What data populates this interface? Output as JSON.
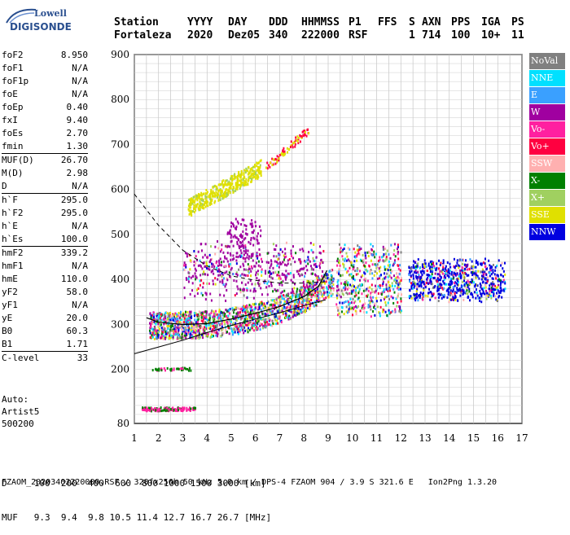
{
  "logo": {
    "line1": "Lowell",
    "line2": "DIGISONDE"
  },
  "header": {
    "labels": [
      "Station",
      "YYYY",
      "DAY",
      "DDD",
      "HHMMSS",
      "P1",
      "FFS",
      "S",
      "AXN",
      "PPS",
      "IGA",
      "PS"
    ],
    "values": [
      "Fortaleza",
      "2020",
      "Dez05",
      "340",
      "222000",
      "RSF",
      "",
      "1",
      "714",
      "100",
      "10+",
      "11"
    ]
  },
  "params": [
    {
      "k": "foF2",
      "v": "8.950"
    },
    {
      "k": "foF1",
      "v": "N/A"
    },
    {
      "k": "foF1p",
      "v": "N/A"
    },
    {
      "k": "foE",
      "v": "N/A"
    },
    {
      "k": "foEp",
      "v": "0.40"
    },
    {
      "k": "fxI",
      "v": "9.40"
    },
    {
      "k": "foEs",
      "v": "2.70"
    },
    {
      "k": "fmin",
      "v": "1.30"
    },
    {
      "k": "MUF(D)",
      "v": "26.70"
    },
    {
      "k": "M(D)",
      "v": "2.98"
    },
    {
      "k": "D",
      "v": "N/A"
    },
    {
      "k": "h`F",
      "v": "295.0"
    },
    {
      "k": "h`F2",
      "v": "295.0"
    },
    {
      "k": "h`E",
      "v": "N/A"
    },
    {
      "k": "h`Es",
      "v": "100.0"
    },
    {
      "k": "hmF2",
      "v": "339.2"
    },
    {
      "k": "hmF1",
      "v": "N/A"
    },
    {
      "k": "hmE",
      "v": "110.0"
    },
    {
      "k": "yF2",
      "v": "58.0"
    },
    {
      "k": "yF1",
      "v": "N/A"
    },
    {
      "k": "yE",
      "v": "20.0"
    },
    {
      "k": "B0",
      "v": "60.3"
    },
    {
      "k": "B1",
      "v": "1.71"
    },
    {
      "k": "C-level",
      "v": "33"
    }
  ],
  "auto": [
    "Auto:",
    "Artist5",
    "500200"
  ],
  "legend": [
    {
      "label": "NoVal",
      "color": "#808080"
    },
    {
      "label": "NNE",
      "color": "#00e0ff"
    },
    {
      "label": "E",
      "color": "#3aa0ff"
    },
    {
      "label": "W",
      "color": "#a000a0"
    },
    {
      "label": "Vo-",
      "color": "#ff20a0"
    },
    {
      "label": "Vo+",
      "color": "#ff0040"
    },
    {
      "label": "SSW",
      "color": "#ffb0b0"
    },
    {
      "label": "X-",
      "color": "#008000"
    },
    {
      "label": "X+",
      "color": "#a0d060"
    },
    {
      "label": "SSE",
      "color": "#e0e000"
    },
    {
      "label": "NNW",
      "color": "#0000e0"
    }
  ],
  "bottom": {
    "d_line": "D     100  200  400  600  800 1000 1500 3000 [km]",
    "muf_line": "MUF   9.3  9.4  9.8 10.5 11.4 12.7 16.7 26.7 [MHz]"
  },
  "footer": "FZAOM_20203402220000.RSF / 320fx256h 50 kHz 5.0 km / DPS-4 FZAOM 904 / 3.9 S 321.6 E   Ion2Png 1.3.20",
  "chart_data": {
    "type": "scatter",
    "xlim": [
      1,
      17
    ],
    "ylim": [
      80,
      900
    ],
    "xticks": [
      1,
      2,
      3,
      4,
      5,
      6,
      7,
      8,
      9,
      10,
      11,
      12,
      13,
      14,
      15,
      16,
      17
    ],
    "yticks": [
      80,
      200,
      300,
      400,
      500,
      600,
      700,
      800,
      900
    ],
    "grid": true,
    "traces": [
      {
        "name": "Es",
        "cls": "Vo-",
        "x0": 1.3,
        "x1": 3.5,
        "y0": 110,
        "y1": 118
      },
      {
        "name": "Es2",
        "cls": "X-",
        "x0": 1.6,
        "x1": 3.5,
        "y0": 200,
        "y1": 206
      },
      {
        "name": "F2o",
        "cls": "Vo-",
        "x0": 1.5,
        "x1": 9.2,
        "y0": 290,
        "y1": 430
      },
      {
        "name": "F2spread",
        "cls": "W",
        "x0": 3.0,
        "x1": 8.8,
        "y0": 300,
        "y1": 460
      },
      {
        "name": "F2x",
        "cls": "X-",
        "x0": 3.0,
        "x1": 9.2,
        "y0": 300,
        "y1": 420
      },
      {
        "name": "multi",
        "cls": "SSE",
        "x0": 3.2,
        "x1": 6.3,
        "y0": 550,
        "y1": 650
      },
      {
        "name": "multi2",
        "cls": "Vo+",
        "x0": 6.3,
        "x1": 8.2,
        "y0": 640,
        "y1": 740
      },
      {
        "name": "spreadR",
        "cls": "NNW",
        "x0": 9.2,
        "x1": 16.5,
        "y0": 340,
        "y1": 510
      }
    ],
    "profile_solid": [
      [
        1,
        235
      ],
      [
        2,
        250
      ],
      [
        3,
        265
      ],
      [
        4,
        282
      ],
      [
        5,
        298
      ],
      [
        6,
        312
      ],
      [
        7,
        326
      ],
      [
        8,
        342
      ],
      [
        8.9,
        355
      ]
    ],
    "profile_dashed": [
      [
        1,
        590
      ],
      [
        2,
        520
      ],
      [
        3,
        465
      ],
      [
        4,
        430
      ],
      [
        5,
        408
      ],
      [
        6,
        398
      ],
      [
        7,
        392
      ],
      [
        8,
        392
      ],
      [
        8.9,
        395
      ]
    ],
    "trace_curve": [
      [
        1.5,
        315
      ],
      [
        2,
        305
      ],
      [
        3,
        300
      ],
      [
        4,
        302
      ],
      [
        5,
        312
      ],
      [
        6,
        325
      ],
      [
        7,
        340
      ],
      [
        8,
        362
      ],
      [
        8.6,
        385
      ],
      [
        8.95,
        420
      ]
    ]
  }
}
